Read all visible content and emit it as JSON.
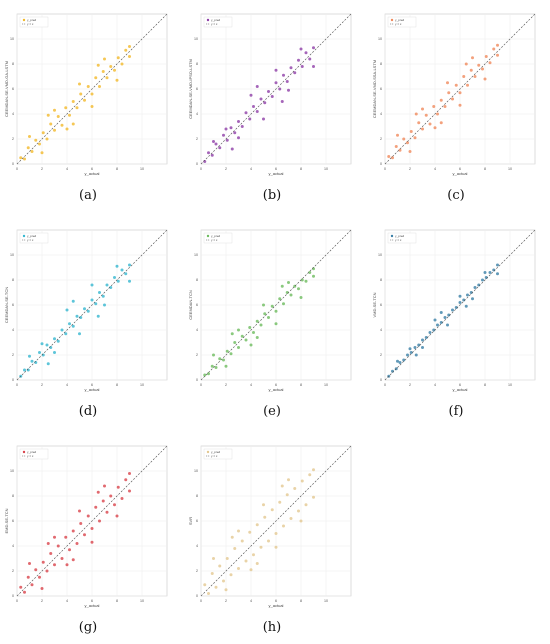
{
  "figure": {
    "panels": [
      {
        "id": "a",
        "label": "(a)"
      },
      {
        "id": "b",
        "label": "(b)"
      },
      {
        "id": "c",
        "label": "(c)"
      },
      {
        "id": "d",
        "label": "(d)"
      },
      {
        "id": "e",
        "label": "(e)"
      },
      {
        "id": "f",
        "label": "(f)"
      },
      {
        "id": "g",
        "label": "(g)"
      },
      {
        "id": "h",
        "label": "(h)"
      }
    ]
  },
  "chart_data": [
    {
      "panel": "(a)",
      "type": "scatter",
      "xlabel": "y_actual",
      "ylabel": "CEEMDAN-SE-VMD-GA-LSTM",
      "legend": [
        "y_pred",
        "y = x"
      ],
      "legend_position": "top-left",
      "xlim": [
        0,
        12
      ],
      "ylim": [
        0,
        12
      ],
      "xticks": [
        0,
        2,
        4,
        6,
        8,
        10
      ],
      "yticks": [
        0,
        2,
        4,
        6,
        8,
        10
      ],
      "grid": true,
      "point_color": "#f2b92a",
      "reference_line": "y = x",
      "series": [
        {
          "name": "y_pred",
          "x": [
            0.3,
            0.6,
            0.9,
            1.2,
            1.5,
            1.8,
            2.1,
            2.4,
            2.7,
            3.0,
            3.3,
            3.6,
            3.9,
            4.2,
            4.5,
            4.8,
            5.1,
            5.4,
            5.7,
            6.0,
            6.3,
            6.6,
            6.9,
            7.2,
            7.5,
            7.8,
            8.1,
            8.4,
            8.7,
            9.0,
            1.0,
            2.0,
            3.0,
            4.0,
            5.0,
            6.0,
            7.0,
            8.0,
            9.0,
            2.5,
            4.5,
            6.5
          ],
          "y": [
            0.5,
            0.4,
            1.3,
            1.0,
            1.9,
            1.6,
            2.5,
            2.0,
            3.2,
            2.7,
            3.8,
            3.1,
            4.5,
            3.9,
            5.0,
            4.5,
            5.6,
            5.1,
            6.2,
            5.6,
            6.9,
            6.2,
            7.4,
            6.9,
            7.8,
            7.5,
            8.5,
            8.0,
            9.1,
            8.6,
            2.2,
            0.9,
            4.3,
            2.8,
            6.4,
            4.6,
            8.4,
            6.7,
            9.4,
            3.9,
            3.2,
            7.9
          ]
        }
      ]
    },
    {
      "panel": "(b)",
      "type": "scatter",
      "xlabel": "y_actual",
      "ylabel": "CEEMDAN-SE-VMD-IPSO-LSTM",
      "legend": [
        "y_pred",
        "y = x"
      ],
      "legend_position": "top-left",
      "xlim": [
        0,
        12
      ],
      "ylim": [
        0,
        12
      ],
      "xticks": [
        0,
        2,
        4,
        6,
        8,
        10
      ],
      "yticks": [
        0,
        2,
        4,
        6,
        8,
        10
      ],
      "grid": true,
      "point_color": "#8e3fa8",
      "reference_line": "y = x",
      "series": [
        {
          "name": "y_pred",
          "x": [
            0.3,
            0.6,
            0.9,
            1.2,
            1.5,
            1.8,
            2.1,
            2.4,
            2.7,
            3.0,
            3.3,
            3.6,
            3.9,
            4.2,
            4.5,
            4.8,
            5.1,
            5.4,
            5.7,
            6.0,
            6.3,
            6.6,
            6.9,
            7.2,
            7.5,
            7.8,
            8.1,
            8.4,
            8.7,
            9.0,
            1.0,
            2.0,
            3.0,
            4.0,
            5.0,
            6.0,
            7.0,
            8.0,
            9.0,
            2.5,
            4.5,
            6.5
          ],
          "y": [
            0.2,
            0.9,
            0.7,
            1.6,
            1.3,
            2.3,
            1.9,
            2.9,
            2.5,
            3.4,
            3.0,
            4.1,
            3.6,
            4.6,
            4.2,
            5.2,
            4.9,
            5.8,
            5.4,
            6.5,
            6.0,
            7.1,
            6.6,
            7.7,
            7.3,
            8.3,
            7.8,
            8.9,
            8.4,
            9.3,
            1.8,
            2.8,
            2.1,
            5.5,
            3.6,
            7.5,
            5.9,
            9.2,
            7.8,
            1.2,
            6.2,
            5.0
          ]
        }
      ]
    },
    {
      "panel": "(c)",
      "type": "scatter",
      "xlabel": "y_actual",
      "ylabel": "CEEMDAN-SE-VMD-SSA-LSTM",
      "legend": [
        "y_pred",
        "y = x"
      ],
      "legend_position": "top-left",
      "xlim": [
        0,
        12
      ],
      "ylim": [
        0,
        12
      ],
      "xticks": [
        0,
        2,
        4,
        6,
        8,
        10
      ],
      "yticks": [
        0,
        2,
        4,
        6,
        8,
        10
      ],
      "grid": true,
      "point_color": "#f08a5d",
      "reference_line": "y = x",
      "series": [
        {
          "name": "y_pred",
          "x": [
            0.3,
            0.6,
            0.9,
            1.2,
            1.5,
            1.8,
            2.1,
            2.4,
            2.7,
            3.0,
            3.3,
            3.6,
            3.9,
            4.2,
            4.5,
            4.8,
            5.1,
            5.4,
            5.7,
            6.0,
            6.3,
            6.6,
            6.9,
            7.2,
            7.5,
            7.8,
            8.1,
            8.4,
            8.7,
            9.0,
            1.0,
            2.0,
            3.0,
            4.0,
            5.0,
            6.0,
            7.0,
            8.0,
            9.0,
            2.5,
            4.5,
            6.5
          ],
          "y": [
            0.6,
            0.5,
            1.4,
            1.1,
            2.0,
            1.7,
            2.6,
            2.1,
            3.3,
            2.8,
            3.9,
            3.2,
            4.6,
            4.0,
            5.1,
            4.6,
            5.7,
            5.2,
            6.3,
            5.7,
            7.0,
            6.3,
            7.5,
            7.0,
            7.9,
            7.6,
            8.6,
            8.1,
            9.2,
            8.7,
            2.3,
            1.0,
            4.4,
            2.9,
            6.5,
            4.7,
            8.5,
            6.8,
            9.5,
            4.0,
            3.3,
            8.0
          ]
        }
      ]
    },
    {
      "panel": "(d)",
      "type": "scatter",
      "xlabel": "y_actual",
      "ylabel": "CEEMDAN-SE-TCN",
      "legend": [
        "y_pred",
        "y = x"
      ],
      "legend_position": "top-left",
      "xlim": [
        0,
        12
      ],
      "ylim": [
        0,
        12
      ],
      "xticks": [
        0,
        2,
        4,
        6,
        8,
        10
      ],
      "yticks": [
        0,
        2,
        4,
        6,
        8,
        10
      ],
      "grid": true,
      "point_color": "#35b7d0",
      "reference_line": "y = x",
      "series": [
        {
          "name": "y_pred",
          "x": [
            0.3,
            0.6,
            0.9,
            1.2,
            1.5,
            1.8,
            2.1,
            2.4,
            2.7,
            3.0,
            3.3,
            3.6,
            3.9,
            4.2,
            4.5,
            4.8,
            5.1,
            5.4,
            5.7,
            6.0,
            6.3,
            6.6,
            6.9,
            7.2,
            7.5,
            7.8,
            8.1,
            8.4,
            8.7,
            9.0,
            1.0,
            2.0,
            3.0,
            4.0,
            5.0,
            6.0,
            7.0,
            8.0,
            9.0,
            2.5,
            4.5,
            6.5
          ],
          "y": [
            0.3,
            0.8,
            0.8,
            1.5,
            1.4,
            2.2,
            2.0,
            2.8,
            2.6,
            3.3,
            3.1,
            4.0,
            3.7,
            4.5,
            4.3,
            5.1,
            5.0,
            5.7,
            5.5,
            6.4,
            6.1,
            7.0,
            6.7,
            7.6,
            7.4,
            8.2,
            7.9,
            8.8,
            8.5,
            9.2,
            1.9,
            2.9,
            2.2,
            5.6,
            3.7,
            7.6,
            6.0,
            9.1,
            7.9,
            1.3,
            6.3,
            5.1
          ]
        }
      ]
    },
    {
      "panel": "(e)",
      "type": "scatter",
      "xlabel": "y_actual",
      "ylabel": "CEEMDAN-TCN",
      "legend": [
        "y_pred",
        "y = x"
      ],
      "legend_position": "top-left",
      "xlim": [
        0,
        12
      ],
      "ylim": [
        0,
        12
      ],
      "xticks": [
        0,
        2,
        4,
        6,
        8,
        10
      ],
      "yticks": [
        0,
        2,
        4,
        6,
        8,
        10
      ],
      "grid": true,
      "point_color": "#6dbb5e",
      "reference_line": "y = x",
      "series": [
        {
          "name": "y_pred",
          "x": [
            0.3,
            0.6,
            0.9,
            1.2,
            1.5,
            1.8,
            2.1,
            2.4,
            2.7,
            3.0,
            3.3,
            3.6,
            3.9,
            4.2,
            4.5,
            4.8,
            5.1,
            5.4,
            5.7,
            6.0,
            6.3,
            6.6,
            6.9,
            7.2,
            7.5,
            7.8,
            8.1,
            8.4,
            8.7,
            9.0,
            1.0,
            2.0,
            3.0,
            4.0,
            5.0,
            6.0,
            7.0,
            8.0,
            9.0,
            2.5,
            4.5,
            6.5
          ],
          "y": [
            0.4,
            0.5,
            1.1,
            1.0,
            1.7,
            1.6,
            2.3,
            2.1,
            3.0,
            2.6,
            3.5,
            3.2,
            4.2,
            3.8,
            4.7,
            4.4,
            5.3,
            5.0,
            5.9,
            5.5,
            6.5,
            6.1,
            7.0,
            6.8,
            7.5,
            7.3,
            8.0,
            7.9,
            8.6,
            8.3,
            2.0,
            1.1,
            4.0,
            2.8,
            6.0,
            4.5,
            7.8,
            6.6,
            8.9,
            3.7,
            3.4,
            7.5
          ]
        }
      ]
    },
    {
      "panel": "(f)",
      "type": "scatter",
      "xlabel": "y_actual",
      "ylabel": "VMD-SE-TCN",
      "legend": [
        "y_pred",
        "y = x"
      ],
      "legend_position": "top-left",
      "xlim": [
        0,
        12
      ],
      "ylim": [
        0,
        12
      ],
      "xticks": [
        0,
        2,
        4,
        6,
        8,
        10
      ],
      "yticks": [
        0,
        2,
        4,
        6,
        8,
        10
      ],
      "grid": true,
      "point_color": "#3a7fa6",
      "reference_line": "y = x",
      "series": [
        {
          "name": "y_pred",
          "x": [
            0.3,
            0.6,
            0.9,
            1.2,
            1.5,
            1.8,
            2.1,
            2.4,
            2.7,
            3.0,
            3.3,
            3.6,
            3.9,
            4.2,
            4.5,
            4.8,
            5.1,
            5.4,
            5.7,
            6.0,
            6.3,
            6.6,
            6.9,
            7.2,
            7.5,
            7.8,
            8.1,
            8.4,
            8.7,
            9.0,
            1.0,
            2.0,
            3.0,
            4.0,
            5.0,
            6.0,
            7.0,
            8.0,
            9.0,
            2.5,
            4.5,
            6.5
          ],
          "y": [
            0.3,
            0.7,
            0.9,
            1.4,
            1.6,
            2.0,
            2.2,
            2.6,
            2.8,
            3.2,
            3.4,
            3.8,
            4.0,
            4.4,
            4.6,
            5.0,
            5.2,
            5.6,
            5.8,
            6.2,
            6.4,
            6.8,
            7.0,
            7.4,
            7.6,
            8.0,
            8.2,
            8.6,
            8.8,
            9.2,
            1.5,
            2.5,
            2.6,
            4.8,
            4.4,
            6.7,
            6.5,
            8.6,
            8.5,
            2.0,
            5.4,
            5.9
          ]
        }
      ]
    },
    {
      "panel": "(g)",
      "type": "scatter",
      "xlabel": "y_actual",
      "ylabel": "EMD-SE-TCN",
      "legend": [
        "y_pred",
        "y = x"
      ],
      "legend_position": "top-left",
      "xlim": [
        0,
        12
      ],
      "ylim": [
        0,
        12
      ],
      "xticks": [
        0,
        2,
        4,
        6,
        8,
        10
      ],
      "yticks": [
        0,
        2,
        4,
        6,
        8,
        10
      ],
      "grid": true,
      "point_color": "#d9434b",
      "reference_line": "y = x",
      "series": [
        {
          "name": "y_pred",
          "x": [
            0.3,
            0.6,
            0.9,
            1.2,
            1.5,
            1.8,
            2.1,
            2.4,
            2.7,
            3.0,
            3.3,
            3.6,
            3.9,
            4.2,
            4.5,
            4.8,
            5.1,
            5.4,
            5.7,
            6.0,
            6.3,
            6.6,
            6.9,
            7.2,
            7.5,
            7.8,
            8.1,
            8.4,
            8.7,
            9.0,
            1.0,
            2.0,
            3.0,
            4.0,
            5.0,
            6.0,
            7.0,
            8.0,
            9.0,
            2.5,
            4.5,
            6.5
          ],
          "y": [
            0.7,
            0.3,
            1.5,
            0.9,
            2.1,
            1.5,
            2.7,
            2.0,
            3.4,
            2.5,
            4.0,
            3.0,
            4.7,
            3.7,
            5.2,
            4.2,
            5.8,
            4.9,
            6.4,
            5.4,
            7.1,
            6.0,
            7.6,
            6.7,
            8.0,
            7.3,
            8.7,
            7.8,
            9.3,
            8.4,
            2.6,
            0.6,
            4.7,
            2.5,
            6.8,
            4.3,
            8.8,
            6.4,
            9.8,
            4.2,
            2.9,
            8.3
          ]
        }
      ]
    },
    {
      "panel": "(h)",
      "type": "scatter",
      "xlabel": "y_actual",
      "ylabel": "SVR",
      "legend": [
        "y_pred",
        "y = x"
      ],
      "legend_position": "top-left",
      "xlim": [
        0,
        12
      ],
      "ylim": [
        0,
        12
      ],
      "xticks": [
        0,
        2,
        4,
        6,
        8,
        10
      ],
      "yticks": [
        0,
        2,
        4,
        6,
        8,
        10
      ],
      "grid": true,
      "point_color": "#e3c891",
      "reference_line": "y = x",
      "series": [
        {
          "name": "y_pred",
          "x": [
            0.3,
            0.6,
            0.9,
            1.2,
            1.5,
            1.8,
            2.1,
            2.4,
            2.7,
            3.0,
            3.3,
            3.6,
            3.9,
            4.2,
            4.5,
            4.8,
            5.1,
            5.4,
            5.7,
            6.0,
            6.3,
            6.6,
            6.9,
            7.2,
            7.5,
            7.8,
            8.1,
            8.4,
            8.7,
            9.0,
            1.0,
            2.0,
            3.0,
            4.0,
            5.0,
            6.0,
            7.0,
            8.0,
            9.0,
            2.5,
            4.5,
            6.5
          ],
          "y": [
            0.9,
            0.2,
            1.8,
            0.7,
            2.4,
            1.2,
            3.0,
            1.7,
            3.8,
            2.2,
            4.4,
            2.8,
            5.1,
            3.3,
            5.7,
            3.9,
            6.3,
            4.4,
            6.9,
            5.0,
            7.5,
            5.6,
            8.1,
            6.2,
            8.6,
            6.8,
            9.2,
            7.3,
            9.7,
            7.9,
            3.0,
            0.5,
            5.2,
            2.1,
            7.3,
            3.9,
            9.3,
            6.0,
            10.1,
            4.7,
            2.6,
            8.8
          ]
        }
      ]
    }
  ]
}
